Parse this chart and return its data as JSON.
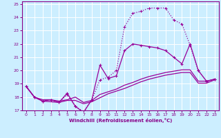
{
  "xlabel": "Windchill (Refroidissement éolien,°C)",
  "bg_color": "#cceeff",
  "grid_color": "#aaddcc",
  "line_color": "#990099",
  "xlim": [
    -0.5,
    23.5
  ],
  "ylim": [
    17.0,
    25.2
  ],
  "yticks": [
    17,
    18,
    19,
    20,
    21,
    22,
    23,
    24,
    25
  ],
  "xticks": [
    0,
    1,
    2,
    3,
    4,
    5,
    6,
    7,
    8,
    9,
    10,
    11,
    12,
    13,
    14,
    15,
    16,
    17,
    18,
    19,
    20,
    21,
    22,
    23
  ],
  "curves": [
    {
      "x": [
        0,
        1,
        2,
        3,
        4,
        5,
        6,
        7,
        8,
        9,
        10,
        11,
        12,
        13,
        14,
        15,
        16,
        17,
        18,
        19,
        20,
        21,
        22,
        23
      ],
      "y": [
        18.8,
        18.0,
        17.7,
        17.8,
        17.6,
        18.2,
        17.3,
        16.9,
        17.8,
        19.3,
        19.5,
        20.0,
        23.3,
        24.3,
        24.45,
        24.7,
        24.7,
        24.7,
        23.8,
        23.5,
        21.9,
        20.0,
        19.2,
        19.35
      ],
      "ls": ":",
      "lw": 0.9,
      "marker": "+"
    },
    {
      "x": [
        0,
        1,
        2,
        3,
        4,
        5,
        6,
        7,
        8,
        9,
        10,
        11,
        12,
        13,
        14,
        15,
        16,
        17,
        18,
        19,
        20,
        21,
        22,
        23
      ],
      "y": [
        18.8,
        18.0,
        17.7,
        17.8,
        17.6,
        18.3,
        17.3,
        16.85,
        17.8,
        20.4,
        19.4,
        19.6,
        21.5,
        22.0,
        21.9,
        21.8,
        21.7,
        21.5,
        21.0,
        20.5,
        22.0,
        20.0,
        19.2,
        19.35
      ],
      "ls": "-",
      "lw": 0.9,
      "marker": "+"
    },
    {
      "x": [
        0,
        1,
        2,
        3,
        4,
        5,
        6,
        7,
        8,
        9,
        10,
        11,
        12,
        13,
        14,
        15,
        16,
        17,
        18,
        19,
        20,
        21,
        22,
        23
      ],
      "y": [
        18.8,
        18.0,
        17.8,
        17.8,
        17.7,
        17.8,
        18.0,
        17.6,
        17.75,
        18.2,
        18.4,
        18.6,
        18.9,
        19.1,
        19.35,
        19.55,
        19.7,
        19.85,
        19.95,
        20.05,
        20.05,
        19.2,
        19.2,
        19.35
      ],
      "ls": "-",
      "lw": 0.9,
      "marker": null
    },
    {
      "x": [
        0,
        1,
        2,
        3,
        4,
        5,
        6,
        7,
        8,
        9,
        10,
        11,
        12,
        13,
        14,
        15,
        16,
        17,
        18,
        19,
        20,
        21,
        22,
        23
      ],
      "y": [
        18.8,
        18.0,
        17.7,
        17.65,
        17.6,
        17.75,
        17.75,
        17.5,
        17.65,
        17.95,
        18.25,
        18.45,
        18.65,
        18.9,
        19.15,
        19.35,
        19.5,
        19.65,
        19.75,
        19.85,
        19.85,
        19.05,
        19.05,
        19.3
      ],
      "ls": "-",
      "lw": 0.9,
      "marker": null
    }
  ]
}
